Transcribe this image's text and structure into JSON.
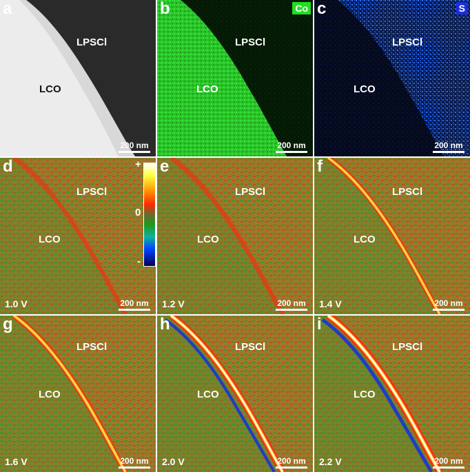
{
  "panels": [
    {
      "letter": "a",
      "region_top": "LPSCl",
      "region_left": "LCO",
      "scale": "200 nm",
      "kind": "haadf"
    },
    {
      "letter": "b",
      "region_top": "LPSCl",
      "region_left": "LCO",
      "scale": "200 nm",
      "kind": "co",
      "tag": "Co",
      "tag_color": "#22dd22"
    },
    {
      "letter": "c",
      "region_top": "LPSCl",
      "region_left": "LCO",
      "scale": "200 nm",
      "kind": "s",
      "tag": "S",
      "tag_color": "#1a2ee0"
    },
    {
      "letter": "d",
      "region_top": "LPSCl",
      "region_left": "LCO",
      "scale": "200 nm",
      "kind": "map",
      "voltage": "1.0 V",
      "intensity": 0.25
    },
    {
      "letter": "e",
      "region_top": "LPSCl",
      "region_left": "LCO",
      "scale": "200 nm",
      "kind": "map",
      "voltage": "1.2 V",
      "intensity": 0.3
    },
    {
      "letter": "f",
      "region_top": "LPSCl",
      "region_left": "LCO",
      "scale": "200 nm",
      "kind": "map",
      "voltage": "1.4 V",
      "intensity": 0.5
    },
    {
      "letter": "g",
      "region_top": "LPSCl",
      "region_left": "LCO",
      "scale": "200 nm",
      "kind": "map",
      "voltage": "1.6 V",
      "intensity": 0.6
    },
    {
      "letter": "h",
      "region_top": "LPSCl",
      "region_left": "LCO",
      "scale": "200 nm",
      "kind": "map",
      "voltage": "2.0 V",
      "intensity": 0.85
    },
    {
      "letter": "i",
      "region_top": "LPSCl",
      "region_left": "LCO",
      "scale": "200 nm",
      "kind": "map",
      "voltage": "2.2 V",
      "intensity": 1.0
    }
  ],
  "colorbar": {
    "plus": "+",
    "zero": "0",
    "minus": "-"
  },
  "colors": {
    "map_base": "#9a7a2a",
    "map_green": "#2e9a2e",
    "map_red": "#e0301a",
    "co": "#22dd22",
    "s": "#2a6cff"
  }
}
